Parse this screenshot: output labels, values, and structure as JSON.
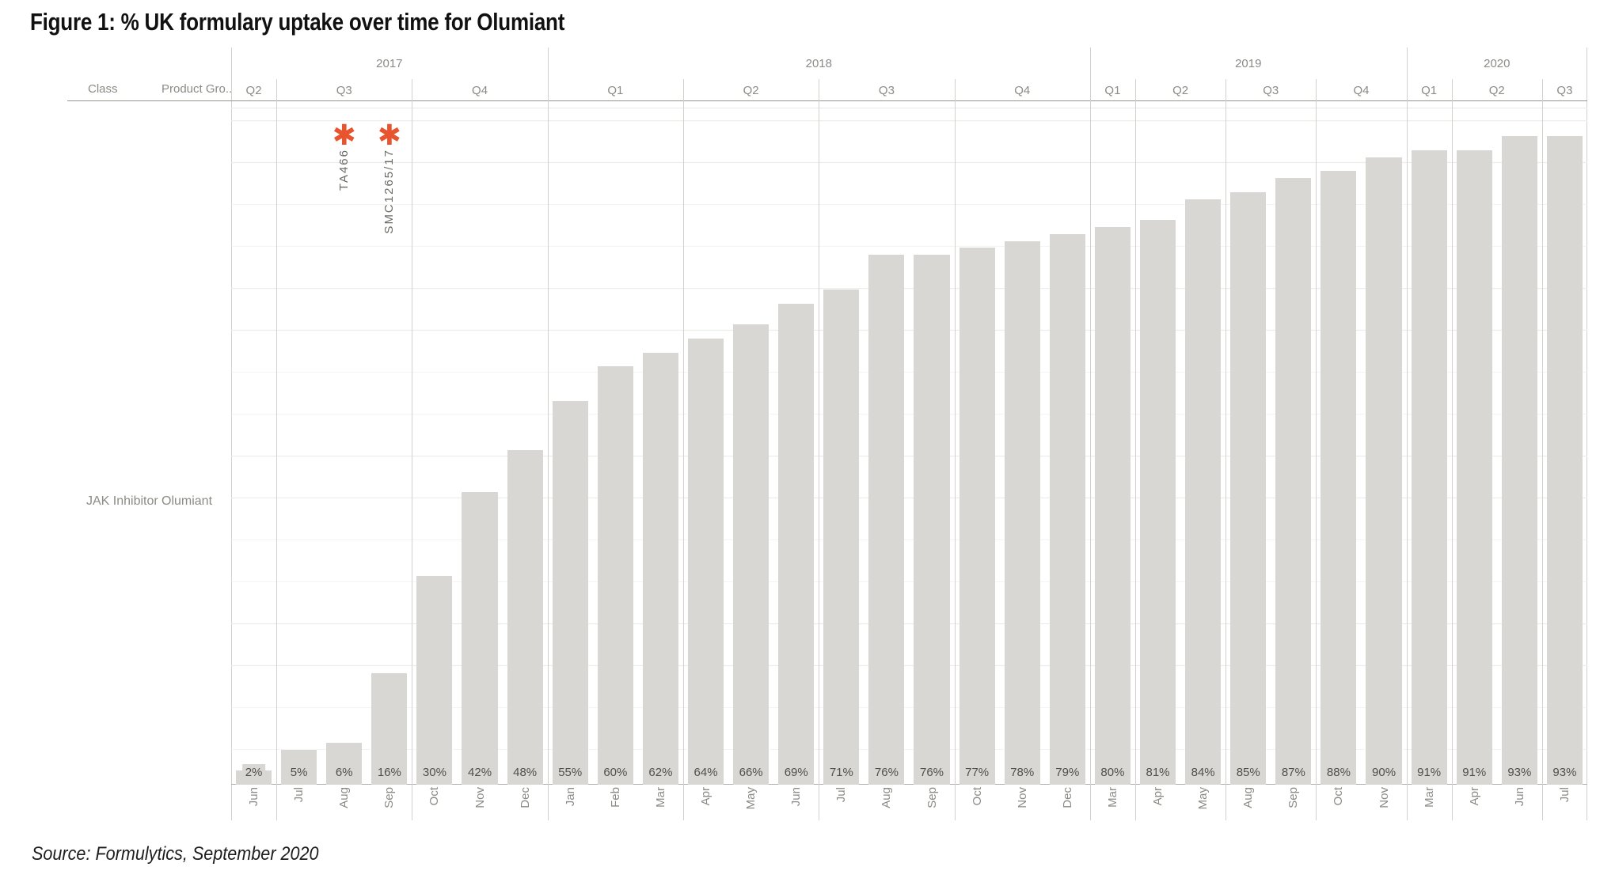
{
  "title": "Figure 1: % UK formulary uptake over time for Olumiant",
  "source": "Source: Formulytics, September 2020",
  "row_header": {
    "class_label": "Class",
    "product_label": "Product Gro..",
    "class_value": "JAK Inhibitor",
    "product_value": "Olumiant"
  },
  "chart_data": {
    "type": "bar",
    "title": "Figure 1: % UK formulary uptake over time for Olumiant",
    "ylabel": "% UK formulary uptake",
    "unit": "%",
    "ylim": [
      0,
      100
    ],
    "grid": "faint horizontal dotted",
    "bar_color": "#d8d7d3",
    "label_color": "#514f49",
    "annotation_color": "#e8542e",
    "groups": [
      {
        "year": "2017",
        "quarters": [
          {
            "label": "Q2",
            "months": [
              "Jun"
            ],
            "values": [
              2
            ]
          },
          {
            "label": "Q3",
            "months": [
              "Jul",
              "Aug",
              "Sep"
            ],
            "values": [
              5,
              6,
              16
            ]
          },
          {
            "label": "Q4",
            "months": [
              "Oct",
              "Nov",
              "Dec"
            ],
            "values": [
              30,
              42,
              48
            ]
          }
        ]
      },
      {
        "year": "2018",
        "quarters": [
          {
            "label": "Q1",
            "months": [
              "Jan",
              "Feb",
              "Mar"
            ],
            "values": [
              55,
              60,
              62
            ]
          },
          {
            "label": "Q2",
            "months": [
              "Apr",
              "May",
              "Jun"
            ],
            "values": [
              64,
              66,
              69
            ]
          },
          {
            "label": "Q3",
            "months": [
              "Jul",
              "Aug",
              "Sep"
            ],
            "values": [
              71,
              76,
              76
            ]
          },
          {
            "label": "Q4",
            "months": [
              "Oct",
              "Nov",
              "Dec"
            ],
            "values": [
              77,
              78,
              79
            ]
          }
        ]
      },
      {
        "year": "2019",
        "quarters": [
          {
            "label": "Q1",
            "months": [
              "Mar"
            ],
            "values": [
              80
            ]
          },
          {
            "label": "Q2",
            "months": [
              "Apr",
              "May"
            ],
            "values": [
              81,
              84
            ]
          },
          {
            "label": "Q3",
            "months": [
              "Aug",
              "Sep"
            ],
            "values": [
              85,
              87
            ]
          },
          {
            "label": "Q4",
            "months": [
              "Oct",
              "Nov"
            ],
            "values": [
              88,
              90
            ]
          }
        ]
      },
      {
        "year": "2020",
        "quarters": [
          {
            "label": "Q1",
            "months": [
              "Mar"
            ],
            "values": [
              91
            ]
          },
          {
            "label": "Q2",
            "months": [
              "Apr",
              "Jun"
            ],
            "values": [
              91,
              93
            ]
          },
          {
            "label": "Q3",
            "months": [
              "Jul"
            ],
            "values": [
              93
            ]
          }
        ]
      }
    ],
    "annotations": [
      {
        "label": "TA466",
        "year": "2017",
        "quarter": "Q3",
        "month": "Aug"
      },
      {
        "label": "SMC1265/17",
        "year": "2017",
        "quarter": "Q3",
        "month": "Sep"
      }
    ]
  }
}
